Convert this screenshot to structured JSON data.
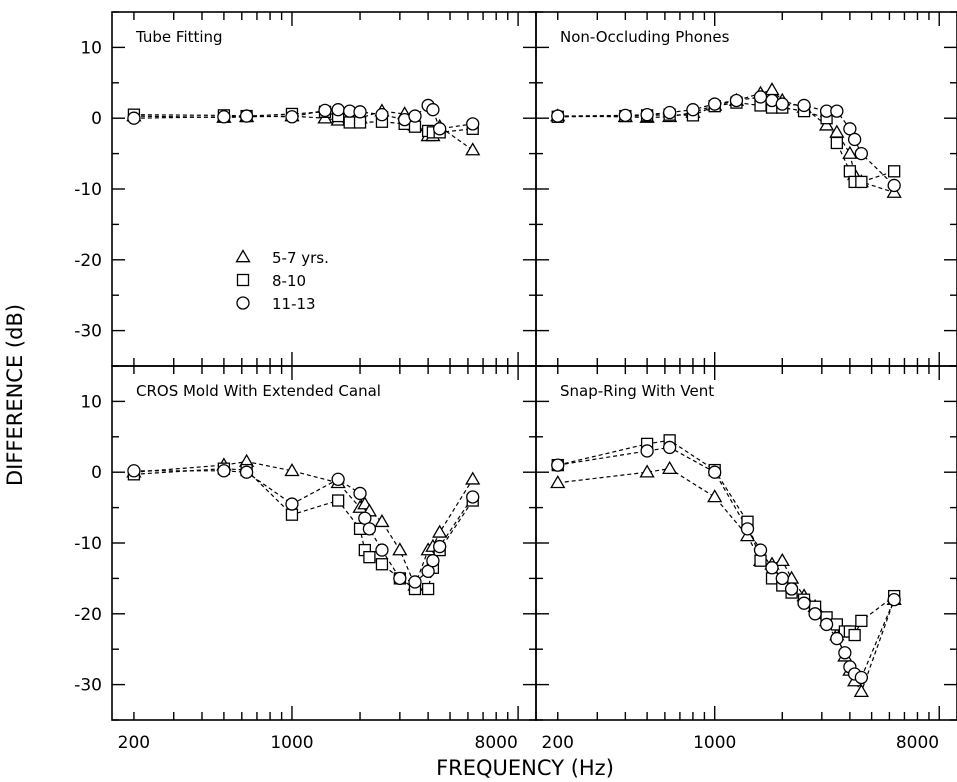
{
  "figure": {
    "ylabel": "DIFFERENCE (dB)",
    "xlabel": "FREQUENCY (Hz)",
    "legend": [
      {
        "label": "5-7 yrs.",
        "marker": "triangle"
      },
      {
        "label": "8-10",
        "marker": "square"
      },
      {
        "label": "11-13",
        "marker": "circle"
      }
    ]
  },
  "chart_data": [
    {
      "type": "line",
      "title": "Tube Fitting",
      "xscale": "log",
      "xlim": [
        160,
        12000
      ],
      "ylim": [
        -35,
        15
      ],
      "xticklabels": [],
      "yticklabels": [
        "10",
        "0",
        "-10",
        "-20",
        "-30"
      ],
      "legend": "lower-left",
      "series": [
        {
          "name": "5-7 yrs.",
          "marker": "triangle",
          "x": [
            200,
            500,
            630,
            1000,
            1400,
            1600,
            1800,
            2000,
            2500,
            3150,
            3500,
            4000,
            4200,
            4500,
            6300
          ],
          "y": [
            0.3,
            0.1,
            0.2,
            0.3,
            0.0,
            -0.3,
            -0.3,
            0.0,
            1.0,
            0.6,
            -1.0,
            -2.5,
            -2.5,
            -1.2,
            -4.5
          ]
        },
        {
          "name": "8-10",
          "marker": "square",
          "x": [
            200,
            500,
            630,
            1000,
            1400,
            1600,
            1800,
            2000,
            2500,
            3150,
            3500,
            4000,
            4200,
            4500,
            6300
          ],
          "y": [
            0.5,
            0.4,
            0.3,
            0.6,
            0.9,
            0.3,
            -0.6,
            -0.6,
            -0.5,
            -0.8,
            -1.2,
            -1.8,
            -2.0,
            -2.0,
            -1.5
          ]
        },
        {
          "name": "11-13",
          "marker": "circle",
          "x": [
            200,
            500,
            630,
            1000,
            1400,
            1600,
            1800,
            2000,
            2500,
            3150,
            3500,
            4000,
            4200,
            4500,
            6300
          ],
          "y": [
            0.0,
            0.2,
            0.3,
            0.2,
            1.1,
            1.2,
            1.0,
            0.9,
            0.5,
            -0.2,
            0.3,
            1.8,
            1.2,
            -1.5,
            -0.8
          ]
        }
      ]
    },
    {
      "type": "line",
      "title": "Non-Occluding Phones",
      "xscale": "log",
      "xlim": [
        160,
        12000
      ],
      "ylim": [
        -35,
        15
      ],
      "xticklabels": [],
      "yticklabels": [],
      "series": [
        {
          "name": "5-7 yrs.",
          "marker": "triangle",
          "x": [
            200,
            400,
            500,
            630,
            800,
            1000,
            1250,
            1600,
            1800,
            2000,
            2500,
            3150,
            3500,
            4000,
            4200,
            4500,
            6300
          ],
          "y": [
            0.3,
            0.2,
            0.1,
            0.2,
            0.8,
            1.8,
            2.5,
            3.5,
            4.0,
            2.5,
            1.5,
            -1.0,
            -2.0,
            -5.0,
            -8.0,
            -9.0,
            -10.5
          ]
        },
        {
          "name": "8-10",
          "marker": "square",
          "x": [
            200,
            400,
            500,
            630,
            800,
            1000,
            1250,
            1600,
            1800,
            2000,
            2500,
            3150,
            3500,
            4000,
            4200,
            4500,
            6300
          ],
          "y": [
            0.2,
            0.3,
            0.4,
            0.5,
            0.4,
            1.7,
            2.2,
            1.8,
            1.5,
            1.5,
            1.0,
            0.0,
            -3.5,
            -7.5,
            -9.0,
            -9.0,
            -7.5
          ]
        },
        {
          "name": "11-13",
          "marker": "circle",
          "x": [
            200,
            400,
            500,
            630,
            800,
            1000,
            1250,
            1600,
            1800,
            2000,
            2500,
            3150,
            3500,
            4000,
            4200,
            4500,
            6300
          ],
          "y": [
            0.3,
            0.4,
            0.5,
            0.8,
            1.2,
            2.0,
            2.5,
            3.0,
            2.5,
            2.0,
            1.8,
            1.0,
            1.0,
            -1.5,
            -3.0,
            -5.0,
            -9.5
          ]
        }
      ]
    },
    {
      "type": "line",
      "title": "CROS Mold With Extended Canal",
      "xscale": "log",
      "xlim": [
        160,
        12000
      ],
      "ylim": [
        -35,
        15
      ],
      "xticklabels": [
        "200",
        "1000",
        "8000"
      ],
      "yticklabels": [
        "10",
        "0",
        "-10",
        "-20",
        "-30"
      ],
      "series": [
        {
          "name": "5-7 yrs.",
          "marker": "triangle",
          "x": [
            200,
            500,
            630,
            1000,
            1600,
            2000,
            2100,
            2200,
            2500,
            3000,
            3500,
            4000,
            4200,
            4500,
            6300
          ],
          "y": [
            0.0,
            1.0,
            1.5,
            0.2,
            -1.5,
            -5.0,
            -4.5,
            -5.5,
            -7.0,
            -11.0,
            -16.0,
            -11.0,
            -10.5,
            -8.5,
            -1.0
          ]
        },
        {
          "name": "8-10",
          "marker": "square",
          "x": [
            200,
            500,
            630,
            1000,
            1600,
            2000,
            2100,
            2200,
            2500,
            3000,
            3500,
            4000,
            4200,
            4500,
            6300
          ],
          "y": [
            -0.3,
            0.5,
            0.3,
            -6.0,
            -4.0,
            -8.0,
            -11.0,
            -12.0,
            -13.0,
            -15.0,
            -16.5,
            -16.5,
            -13.5,
            -11.0,
            -4.0
          ]
        },
        {
          "name": "11-13",
          "marker": "circle",
          "x": [
            200,
            500,
            630,
            1000,
            1600,
            2000,
            2100,
            2200,
            2500,
            3000,
            3500,
            4000,
            4200,
            4500,
            6300
          ],
          "y": [
            0.2,
            0.2,
            0.0,
            -4.5,
            -1.0,
            -3.0,
            -6.5,
            -8.0,
            -11.0,
            -15.0,
            -15.5,
            -14.0,
            -12.5,
            -10.5,
            -3.5
          ]
        }
      ]
    },
    {
      "type": "line",
      "title": "Snap-Ring With Vent",
      "xscale": "log",
      "xlim": [
        160,
        12000
      ],
      "ylim": [
        -35,
        15
      ],
      "xticklabels": [
        "200",
        "1000",
        "8000"
      ],
      "yticklabels": [],
      "series": [
        {
          "name": "5-7 yrs.",
          "marker": "triangle",
          "x": [
            200,
            500,
            630,
            1000,
            1400,
            1600,
            1800,
            2000,
            2200,
            2500,
            2800,
            3150,
            3500,
            3800,
            4000,
            4200,
            4500,
            6300
          ],
          "y": [
            -1.5,
            0.0,
            0.5,
            -3.5,
            -9.0,
            -12.5,
            -13.0,
            -12.5,
            -15.0,
            -17.5,
            -19.0,
            -21.0,
            -23.0,
            -26.0,
            -28.0,
            -29.5,
            -31.0,
            -18.0
          ]
        },
        {
          "name": "8-10",
          "marker": "square",
          "x": [
            200,
            500,
            630,
            1000,
            1400,
            1600,
            1800,
            2000,
            2200,
            2500,
            2800,
            3150,
            3500,
            3800,
            4000,
            4200,
            4500,
            6300
          ],
          "y": [
            1.0,
            4.0,
            4.5,
            0.3,
            -7.0,
            -12.5,
            -15.0,
            -16.0,
            -17.0,
            -18.0,
            -19.0,
            -20.5,
            -21.5,
            -22.5,
            -22.5,
            -23.0,
            -21.0,
            -17.5
          ]
        },
        {
          "name": "11-13",
          "marker": "circle",
          "x": [
            200,
            500,
            630,
            1000,
            1400,
            1600,
            1800,
            2000,
            2200,
            2500,
            2800,
            3150,
            3500,
            3800,
            4000,
            4200,
            4500,
            6300
          ],
          "y": [
            1.0,
            3.0,
            3.5,
            0.0,
            -8.0,
            -11.0,
            -13.5,
            -15.0,
            -16.5,
            -18.5,
            -20.0,
            -21.5,
            -23.5,
            -25.5,
            -27.5,
            -28.5,
            -29.0,
            -18.0
          ]
        }
      ]
    }
  ]
}
